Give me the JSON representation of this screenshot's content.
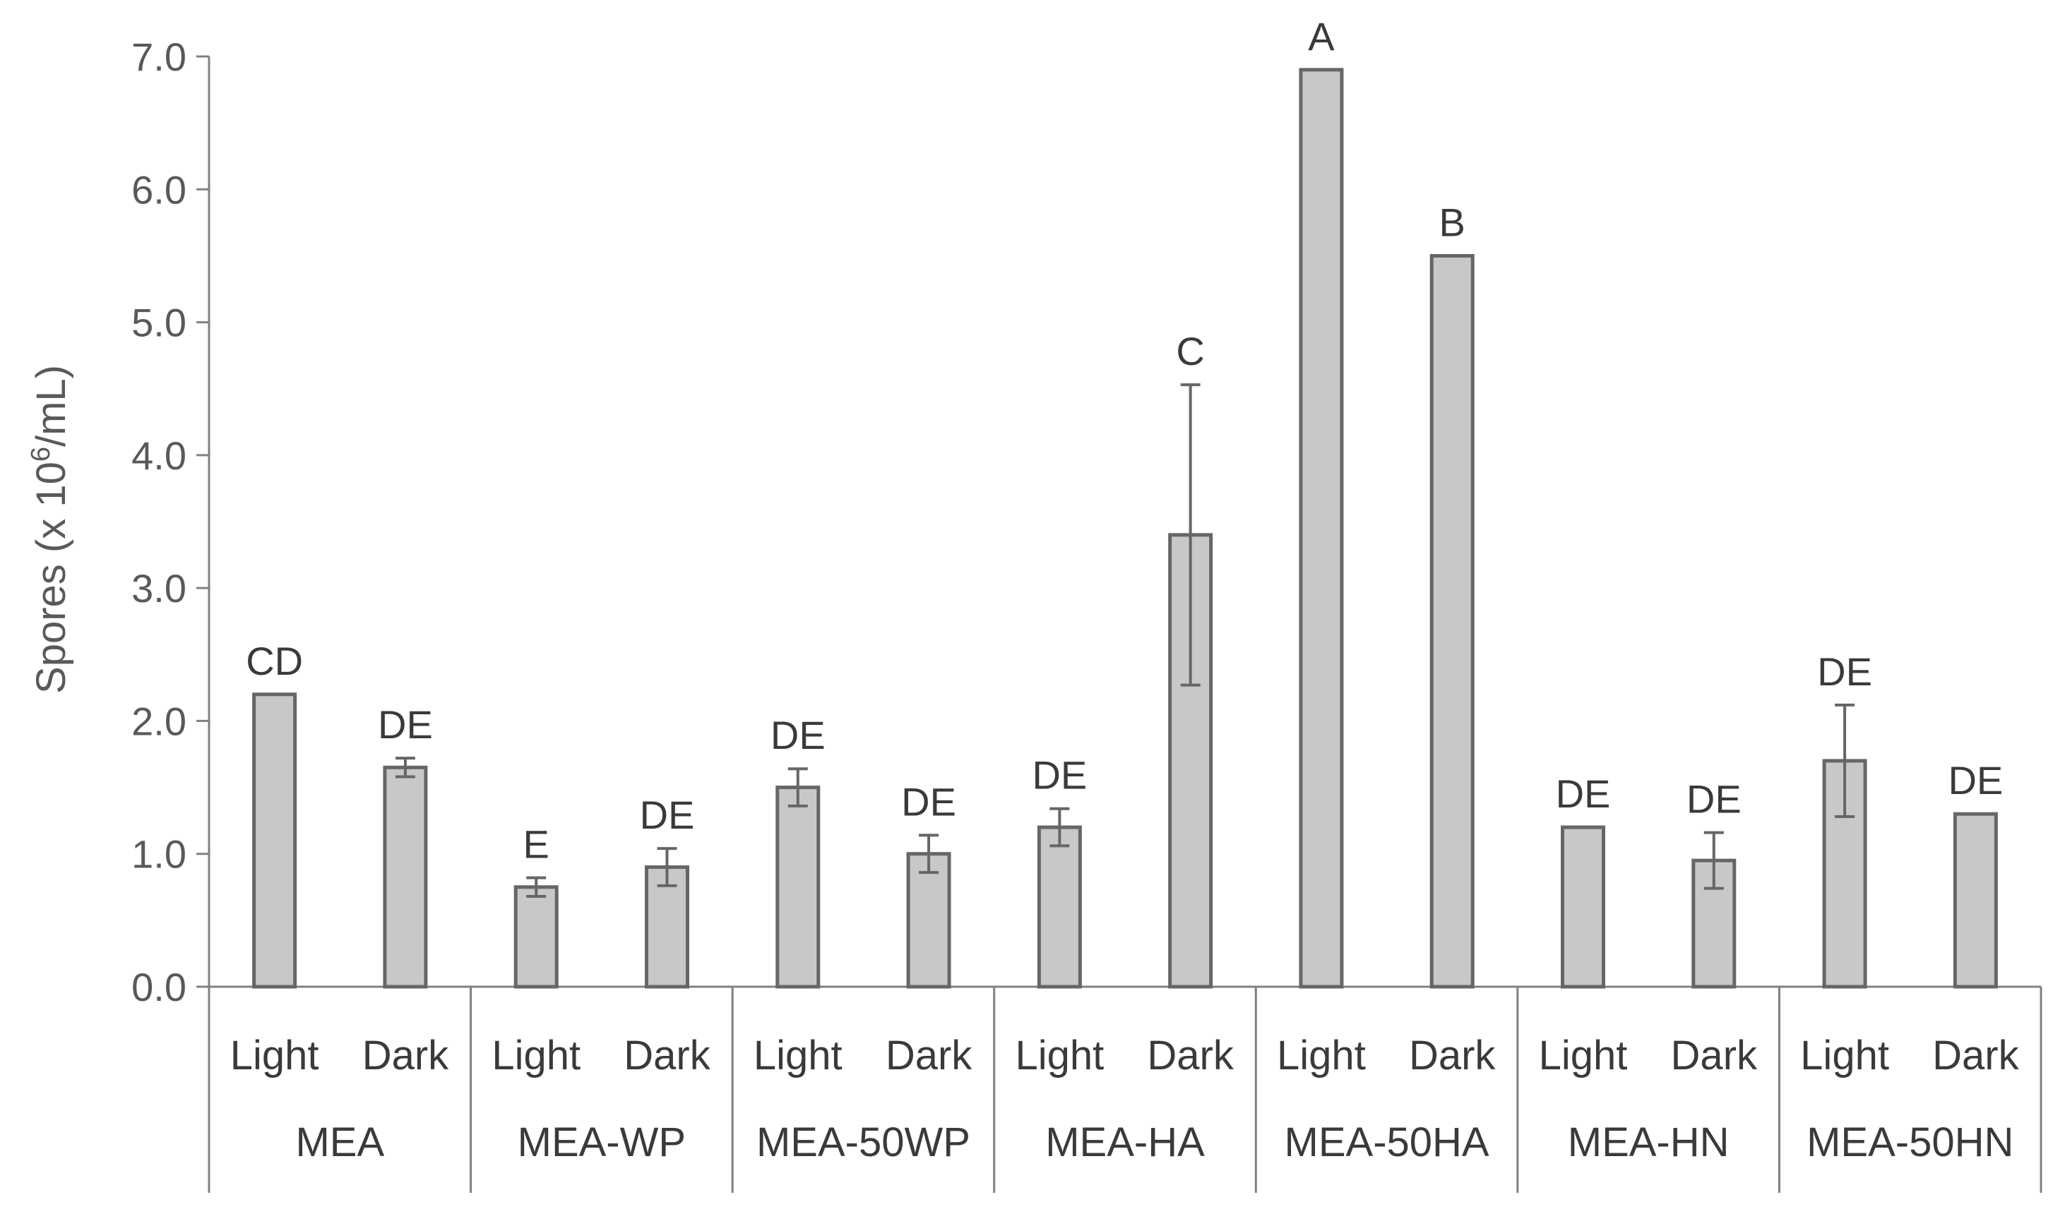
{
  "chart_data": {
    "type": "bar",
    "title": "",
    "xlabel": "",
    "ylabel": {
      "prefix": "Spores (x 10",
      "superscript": "6",
      "suffix": "/mL)"
    },
    "ylim": [
      0,
      7
    ],
    "yticks": [
      "0.0",
      "1.0",
      "2.0",
      "3.0",
      "4.0",
      "5.0",
      "6.0",
      "7.0"
    ],
    "grid": false,
    "groups": [
      "MEA",
      "MEA-WP",
      "MEA-50WP",
      "MEA-HA",
      "MEA-50HA",
      "MEA-HN",
      "MEA-50HN"
    ],
    "conditions": [
      "Light",
      "Dark"
    ],
    "bars": [
      {
        "group": "MEA",
        "condition": "Light",
        "value": 2.2,
        "error": 0,
        "label": "CD"
      },
      {
        "group": "MEA",
        "condition": "Dark",
        "value": 1.65,
        "error": 0.07,
        "label": "DE"
      },
      {
        "group": "MEA-WP",
        "condition": "Light",
        "value": 0.75,
        "error": 0.07,
        "label": "E"
      },
      {
        "group": "MEA-WP",
        "condition": "Dark",
        "value": 0.9,
        "error": 0.14,
        "label": "DE"
      },
      {
        "group": "MEA-50WP",
        "condition": "Light",
        "value": 1.5,
        "error": 0.14,
        "label": "DE"
      },
      {
        "group": "MEA-50WP",
        "condition": "Dark",
        "value": 1.0,
        "error": 0.14,
        "label": "DE"
      },
      {
        "group": "MEA-HA",
        "condition": "Light",
        "value": 1.2,
        "error": 0.14,
        "label": "DE"
      },
      {
        "group": "MEA-HA",
        "condition": "Dark",
        "value": 3.4,
        "error": 1.13,
        "label": "C"
      },
      {
        "group": "MEA-50HA",
        "condition": "Light",
        "value": 6.9,
        "error": 0,
        "label": "A"
      },
      {
        "group": "MEA-50HA",
        "condition": "Dark",
        "value": 5.5,
        "error": 0,
        "label": "B"
      },
      {
        "group": "MEA-HN",
        "condition": "Light",
        "value": 1.2,
        "error": 0,
        "label": "DE"
      },
      {
        "group": "MEA-HN",
        "condition": "Dark",
        "value": 0.95,
        "error": 0.21,
        "label": "DE"
      },
      {
        "group": "MEA-50HN",
        "condition": "Light",
        "value": 1.7,
        "error": 0.42,
        "label": "DE"
      },
      {
        "group": "MEA-50HN",
        "condition": "Dark",
        "value": 1.3,
        "error": 0,
        "label": "DE"
      }
    ],
    "colors": {
      "bar_fill": "#c8c8c8",
      "bar_stroke": "#666666",
      "axis": "#808080",
      "text": "#3a3a3a",
      "tick_text": "#595959"
    }
  }
}
